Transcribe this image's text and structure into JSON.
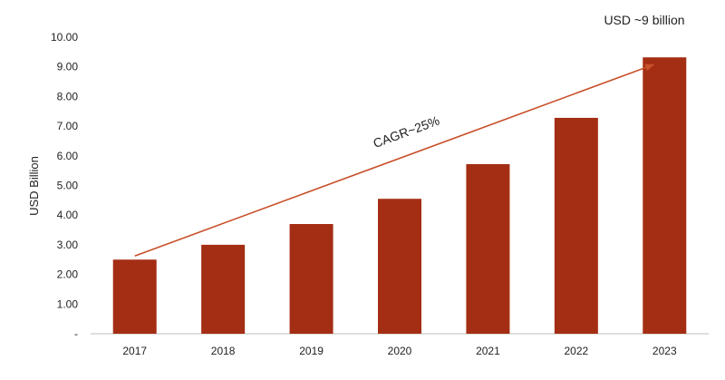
{
  "chart_data": {
    "type": "bar",
    "categories": [
      "2017",
      "2018",
      "2019",
      "2020",
      "2021",
      "2022",
      "2023"
    ],
    "values": [
      2.5,
      3.0,
      3.7,
      4.55,
      5.72,
      7.28,
      9.32
    ],
    "ylabel": "USD Billion",
    "xlabel": "",
    "ylim": [
      0,
      10
    ],
    "yticks": [
      "-",
      "1.00",
      "2.00",
      "3.00",
      "4.00",
      "5.00",
      "6.00",
      "7.00",
      "8.00",
      "9.00",
      "10.00"
    ],
    "grid": false,
    "legend": "none",
    "bar_color": "#A42E14",
    "arrow_color": "#C8502A",
    "annotations": {
      "top_right": "USD ~9 billion",
      "trend": "CAGR~25%"
    }
  }
}
